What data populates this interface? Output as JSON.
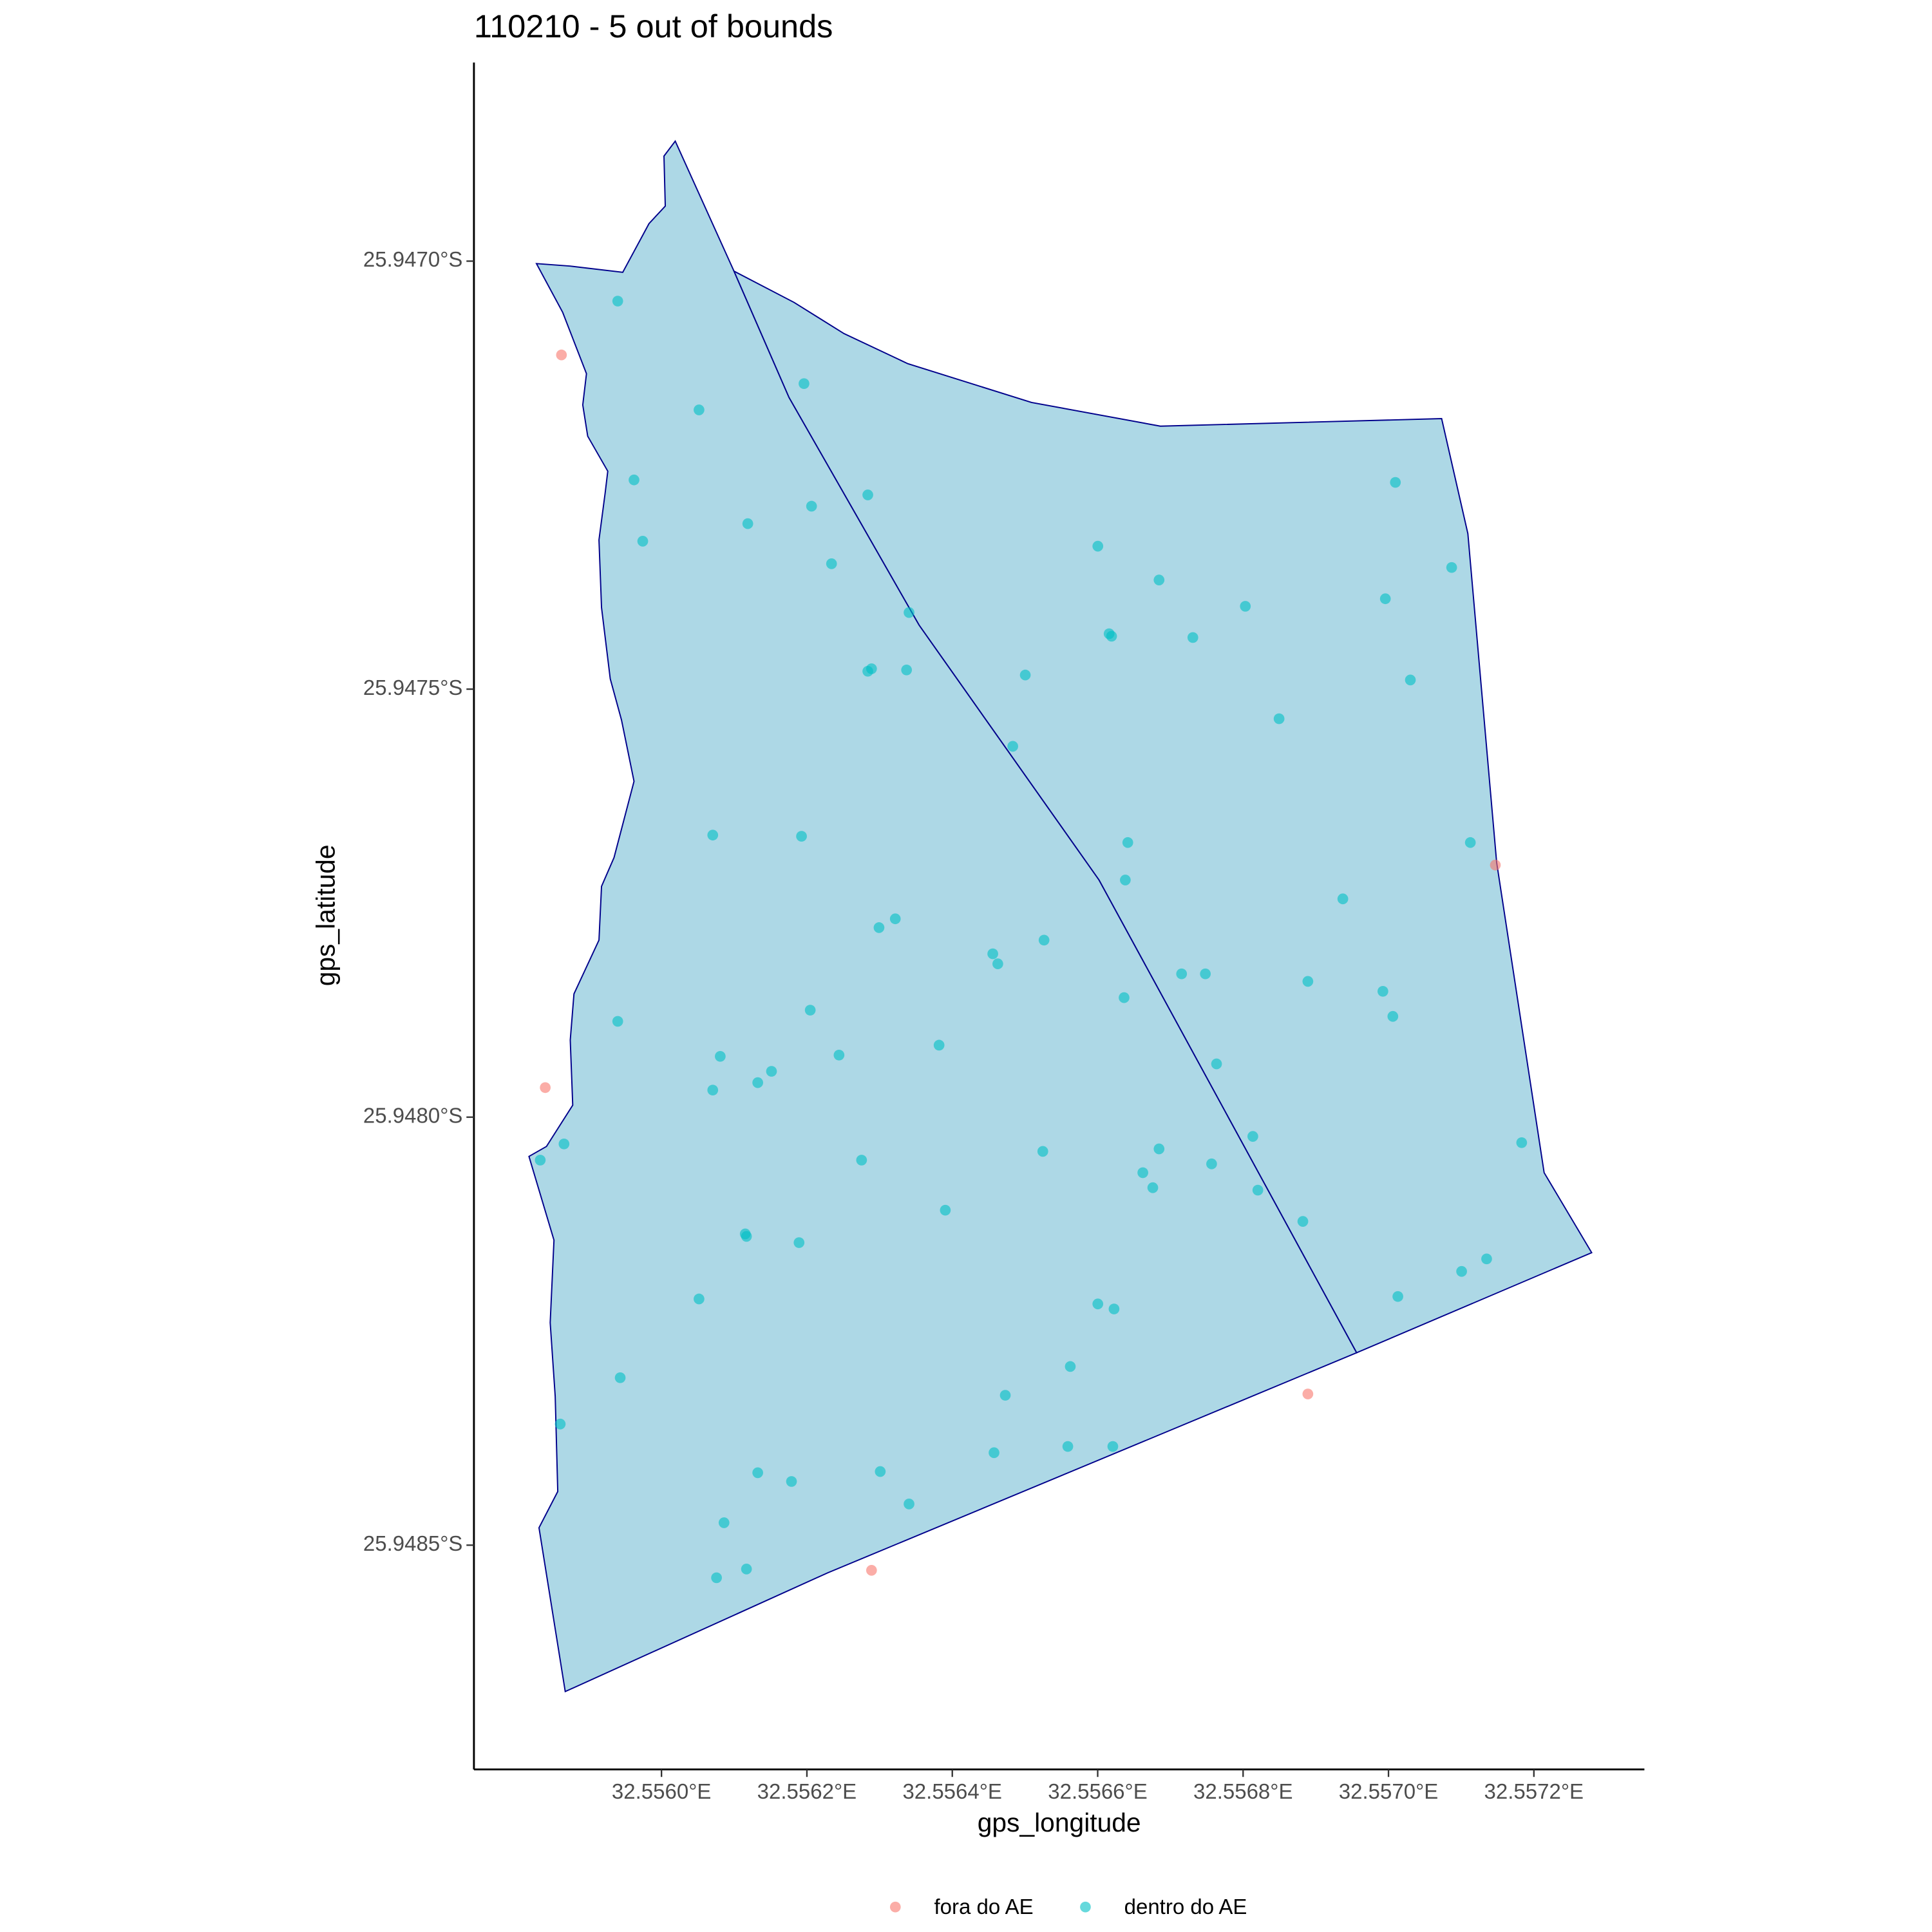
{
  "chart_data": {
    "type": "scatter",
    "title": "110210 - 5 out of bounds",
    "x_label": "gps_longitude",
    "y_label": "gps_latitude",
    "xlim": [
      32.555742,
      32.557352
    ],
    "ylim": [
      -25.948762,
      -25.946768
    ],
    "xticks": [
      {
        "value": 32.556,
        "label": "32.5560°E"
      },
      {
        "value": 32.5562,
        "label": "32.5562°E"
      },
      {
        "value": 32.5564,
        "label": "32.5564°E"
      },
      {
        "value": 32.5566,
        "label": "32.5566°E"
      },
      {
        "value": 32.5568,
        "label": "32.5568°E"
      },
      {
        "value": 32.557,
        "label": "32.5570°E"
      },
      {
        "value": 32.5572,
        "label": "32.5572°E"
      }
    ],
    "yticks": [
      {
        "value": -25.947,
        "label": "25.9470°S"
      },
      {
        "value": -25.9475,
        "label": "25.9475°S"
      },
      {
        "value": -25.948,
        "label": "25.9480°S"
      },
      {
        "value": -25.9485,
        "label": "25.9485°S"
      }
    ],
    "legend": "bottom",
    "polygons": [
      {
        "color": "#ADD8E6",
        "edge_color": "#00008B",
        "x": [
          32.555828,
          32.5558745,
          32.5559467,
          32.5559828,
          32.5560052,
          32.5560034,
          32.5560189,
          32.5560997,
          32.5561754,
          32.5563543,
          32.5566019,
          32.5569562,
          32.5562287,
          32.5558676,
          32.5558315,
          32.5558573,
          32.5558538,
          32.5558469,
          32.5558521,
          32.5558177,
          32.5558418,
          32.5558779,
          32.5558745,
          32.5558796,
          32.555914,
          32.5559175,
          32.5559347,
          32.5559622,
          32.555945,
          32.5559295,
          32.5559175,
          32.555914,
          32.5559226,
          32.5559261,
          32.5558985,
          32.5558917,
          32.5558968,
          32.5558641
        ],
        "y": [
          -25.9470029,
          -25.9470058,
          -25.9470131,
          -25.9469562,
          -25.9469357,
          -25.9468773,
          -25.9468598,
          -25.9470117,
          -25.9471592,
          -25.9474251,
          -25.947723,
          -25.9482752,
          -25.9485323,
          -25.948671,
          -25.9484797,
          -25.9484373,
          -25.9483263,
          -25.9482401,
          -25.9481437,
          -25.9480459,
          -25.9480342,
          -25.947986,
          -25.94791,
          -25.947856,
          -25.9477932,
          -25.9477304,
          -25.9476968,
          -25.9476077,
          -25.9475361,
          -25.9474879,
          -25.9474046,
          -25.9473257,
          -25.9472702,
          -25.9472454,
          -25.9472045,
          -25.947168,
          -25.9471315,
          -25.9470599
        ]
      },
      {
        "color": "#ADD8E6",
        "edge_color": "#00008B",
        "x": [
          32.5560997,
          32.5561754,
          32.5563543,
          32.5566019,
          32.5569562,
          32.5572795,
          32.5572141,
          32.5571488,
          32.5571092,
          32.5570731,
          32.5566862,
          32.556509,
          32.5563388,
          32.5562511,
          32.5561823
        ],
        "y": [
          -25.9470117,
          -25.9471592,
          -25.9474251,
          -25.947723,
          -25.9482752,
          -25.9481583,
          -25.9480649,
          -25.9477026,
          -25.9473184,
          -25.947184,
          -25.9471928,
          -25.9471651,
          -25.9471198,
          -25.9470847,
          -25.9470482
        ]
      }
    ],
    "series": [
      {
        "name": "fora do AE",
        "color": "#F8766D",
        "x": [
          32.5558624,
          32.5558401,
          32.557147,
          32.5568891,
          32.5562889
        ],
        "y": [
          -25.9471096,
          -25.9479655,
          -25.9477055,
          -25.9483234,
          -25.9485294
        ]
      },
      {
        "name": "dentro do AE",
        "color": "#00BFC4",
        "x": [
          32.5559398,
          32.556196,
          32.5560516,
          32.5559622,
          32.5570095,
          32.5562838,
          32.5562064,
          32.5561187,
          32.5559742,
          32.5566002,
          32.5570869,
          32.5562339,
          32.5566844,
          32.5569957,
          32.5568031,
          32.5563405,
          32.5566157,
          32.5566191,
          32.5567309,
          32.5562889,
          32.5562838,
          32.5563371,
          32.5565004,
          32.5570301,
          32.5568495,
          32.5564832,
          32.5560705,
          32.5561926,
          32.5566414,
          32.5571126,
          32.556638,
          32.5569372,
          32.5563216,
          32.5562992,
          32.5565262,
          32.5564557,
          32.5564626,
          32.5567154,
          32.5567481,
          32.5568891,
          32.5569923,
          32.5566363,
          32.5562046,
          32.557006,
          32.5559398,
          32.5563818,
          32.5560808,
          32.5562442,
          32.5567635,
          32.5561513,
          32.5561324,
          32.5560705,
          32.5571832,
          32.5558659,
          32.5565245,
          32.5566844,
          32.5568134,
          32.5558332,
          32.5562752,
          32.5567567,
          32.5566621,
          32.5566758,
          32.5568203,
          32.5563904,
          32.5568822,
          32.5561152,
          32.5561169,
          32.5561892,
          32.557135,
          32.5571006,
          32.5560516,
          32.5570129,
          32.5566002,
          32.5566225,
          32.5565623,
          32.5559432,
          32.5564729,
          32.5558607,
          32.5565589,
          32.5566208,
          32.5564574,
          32.5563009,
          32.5561324,
          32.5561788,
          32.5563405,
          32.556086,
          32.5561169,
          32.5560757
        ],
        "y": [
          -25.9470467,
          -25.9471431,
          -25.9471738,
          -25.9472556,
          -25.9472585,
          -25.9472731,
          -25.9472863,
          -25.9473067,
          -25.9473272,
          -25.947333,
          -25.9473579,
          -25.9473535,
          -25.9473725,
          -25.9473944,
          -25.9474032,
          -25.9474105,
          -25.9474353,
          -25.9474382,
          -25.9474397,
          -25.9474762,
          -25.9474791,
          -25.9474776,
          -25.9474835,
          -25.9474893,
          -25.9475346,
          -25.9475668,
          -25.9476705,
          -25.9476719,
          -25.9476792,
          -25.9476792,
          -25.947723,
          -25.947745,
          -25.9477683,
          -25.9477786,
          -25.9477932,
          -25.9478092,
          -25.9478209,
          -25.9478326,
          -25.9478326,
          -25.9478414,
          -25.947853,
          -25.9478604,
          -25.947875,
          -25.9478823,
          -25.9478881,
          -25.9479159,
          -25.947929,
          -25.9479275,
          -25.9479378,
          -25.9479465,
          -25.9479597,
          -25.9479684,
          -25.9480298,
          -25.9480313,
          -25.94804,
          -25.9480371,
          -25.9480225,
          -25.9480502,
          -25.9480502,
          -25.9480546,
          -25.9480649,
          -25.9480824,
          -25.9480853,
          -25.9481087,
          -25.9481218,
          -25.9481364,
          -25.9481393,
          -25.9481466,
          -25.9481656,
          -25.9481802,
          -25.9482124,
          -25.9482095,
          -25.9482182,
          -25.9482241,
          -25.9482913,
          -25.9483044,
          -25.9483249,
          -25.9483585,
          -25.9483847,
          -25.9483847,
          -25.948392,
          -25.948414,
          -25.9484154,
          -25.9484256,
          -25.9484519,
          -25.9484738,
          -25.9485279,
          -25.9485381
        ]
      }
    ]
  }
}
